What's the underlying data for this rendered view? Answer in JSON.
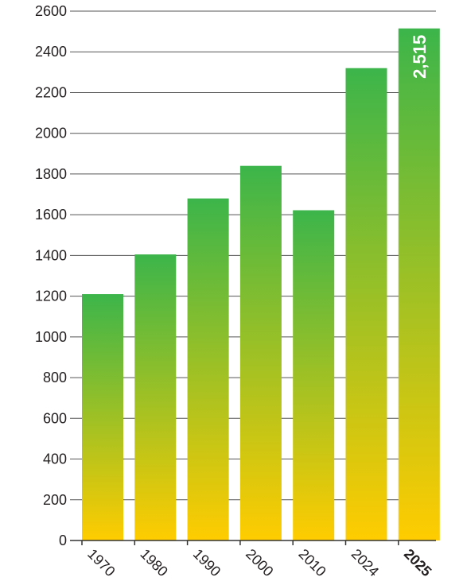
{
  "chart_data": {
    "type": "bar",
    "categories": [
      "1970",
      "1980",
      "1990",
      "2000",
      "2010",
      "2024",
      "2025"
    ],
    "values": [
      1210,
      1405,
      1680,
      1840,
      1622,
      2320,
      2515
    ],
    "ylim": [
      0,
      2600
    ],
    "yticks": [
      0,
      200,
      400,
      600,
      800,
      1000,
      1200,
      1400,
      1600,
      1800,
      2000,
      2200,
      2400,
      2600
    ],
    "grid": true,
    "highlight_category": "2025",
    "data_labels": [
      {
        "category": "2025",
        "text": "2,515"
      }
    ],
    "colors": {
      "bar_top_green": "#3cb54a",
      "bar_bottom_yellow": "#ffcc00",
      "label_text": "#231f20",
      "data_label_text": "#ffffff",
      "grid": "#555555"
    }
  }
}
